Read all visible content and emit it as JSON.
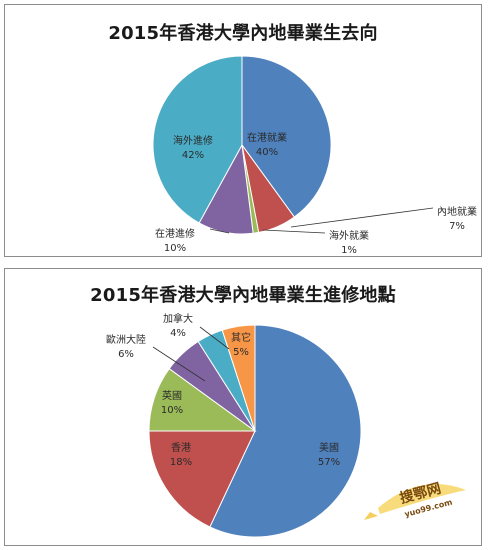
{
  "chart_data": [
    {
      "type": "pie",
      "title": "2015年香港大學內地畢業生去向",
      "slices": [
        {
          "label": "在港就業",
          "value": 40,
          "value_label": "40%",
          "color": "#4f81bd"
        },
        {
          "label": "內地就業",
          "value": 7,
          "value_label": "7%",
          "color": "#c0504d"
        },
        {
          "label": "海外就業",
          "value": 1,
          "value_label": "1%",
          "color": "#9bbb59"
        },
        {
          "label": "在港進修",
          "value": 10,
          "value_label": "10%",
          "color": "#8064a2"
        },
        {
          "label": "海外進修",
          "value": 42,
          "value_label": "42%",
          "color": "#4bacc6"
        }
      ]
    },
    {
      "type": "pie",
      "title": "2015年香港大學內地畢業生進修地點",
      "slices": [
        {
          "label": "美國",
          "value": 57,
          "value_label": "57%",
          "color": "#4f81bd"
        },
        {
          "label": "香港",
          "value": 18,
          "value_label": "18%",
          "color": "#c0504d"
        },
        {
          "label": "英國",
          "value": 10,
          "value_label": "10%",
          "color": "#9bbb59"
        },
        {
          "label": "歐洲大陸",
          "value": 6,
          "value_label": "6%",
          "color": "#8064a2"
        },
        {
          "label": "加拿大",
          "value": 4,
          "value_label": "4%",
          "color": "#4bacc6"
        },
        {
          "label": "其它",
          "value": 5,
          "value_label": "5%",
          "color": "#f79646"
        }
      ]
    }
  ],
  "watermark": {
    "text_cn": "搜鄂网",
    "text_url": "yuo99.com"
  }
}
